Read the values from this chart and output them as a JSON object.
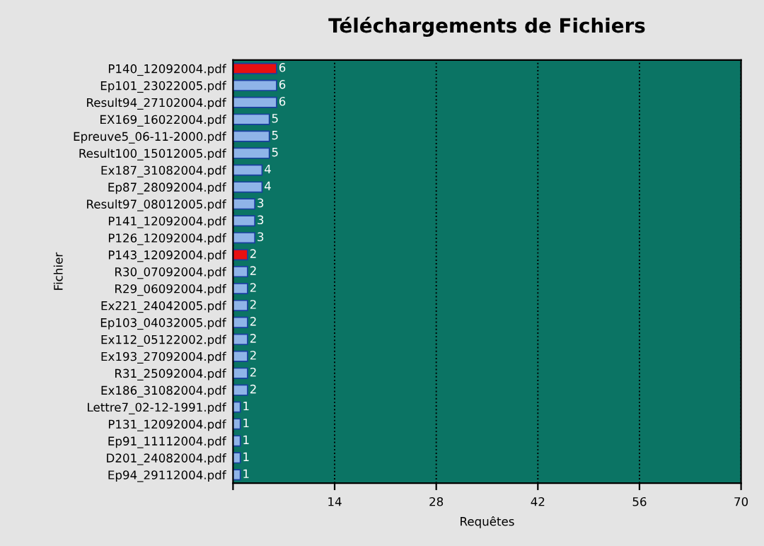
{
  "chart_data": {
    "type": "bar",
    "orientation": "horizontal",
    "title": "Téléchargements de Fichiers",
    "xlabel": "Requêtes",
    "ylabel": "Fichier",
    "categories": [
      "P140_12092004.pdf",
      "Ep101_23022005.pdf",
      "Result94_27102004.pdf",
      "EX169_16022004.pdf",
      "Epreuve5_06-11-2000.pdf",
      "Result100_15012005.pdf",
      "Ex187_31082004.pdf",
      "Ep87_28092004.pdf",
      "Result97_08012005.pdf",
      "P141_12092004.pdf",
      "P126_12092004.pdf",
      "P143_12092004.pdf",
      "R30_07092004.pdf",
      "R29_06092004.pdf",
      "Ex221_24042005.pdf",
      "Ep103_04032005.pdf",
      "Ex112_05122002.pdf",
      "Ex193_27092004.pdf",
      "R31_25092004.pdf",
      "Ex186_31082004.pdf",
      "Lettre7_02-12-1991.pdf",
      "P131_12092004.pdf",
      "Ep91_11112004.pdf",
      "D201_24082004.pdf",
      "Ep94_29112004.pdf"
    ],
    "values": [
      6,
      6,
      6,
      5,
      5,
      5,
      4,
      4,
      3,
      3,
      3,
      2,
      2,
      2,
      2,
      2,
      2,
      2,
      2,
      2,
      1,
      1,
      1,
      1,
      1
    ],
    "colors": [
      "#e81010",
      "#8fb4e8",
      "#8fb4e8",
      "#8fb4e8",
      "#8fb4e8",
      "#8fb4e8",
      "#8fb4e8",
      "#8fb4e8",
      "#8fb4e8",
      "#8fb4e8",
      "#8fb4e8",
      "#e81010",
      "#8fb4e8",
      "#8fb4e8",
      "#8fb4e8",
      "#8fb4e8",
      "#8fb4e8",
      "#8fb4e8",
      "#8fb4e8",
      "#8fb4e8",
      "#8fb4e8",
      "#8fb4e8",
      "#8fb4e8",
      "#8fb4e8",
      "#8fb4e8"
    ],
    "xlim": [
      0,
      70
    ],
    "xticks": [
      {
        "value": 0,
        "label": null
      },
      14,
      28,
      42,
      56,
      70
    ],
    "grid": "x",
    "data_labels": true
  }
}
